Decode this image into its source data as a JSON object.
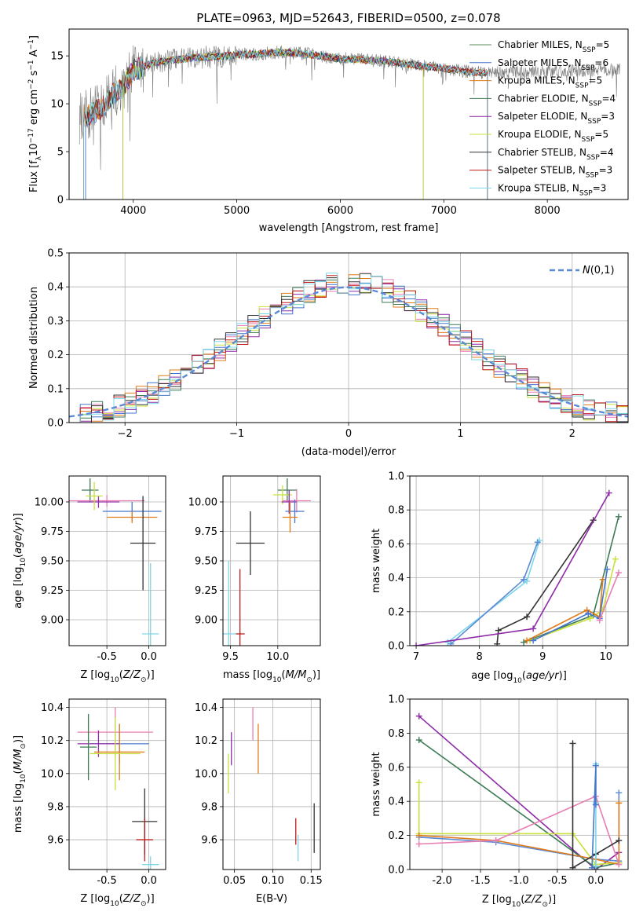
{
  "chart_data": [
    {
      "id": "spectrum",
      "type": "line",
      "title": "PLATE=0963, MJD=52643, FIBERID=0500, z=0.078",
      "xlabel": "wavelength [Angstrom, rest frame]",
      "ylabel": "Flux [f_λ 10^-17 erg cm^-2 s^-1 A^-1]",
      "xlim": [
        3380,
        8780
      ],
      "ylim": [
        0,
        17.8
      ],
      "xticks": [
        4000,
        5000,
        6000,
        7000,
        8000
      ],
      "yticks": [
        0,
        5,
        10,
        15
      ],
      "grid": false,
      "legend_position": "top-right",
      "continuum_x": [
        3500,
        3600,
        3700,
        3800,
        3900,
        4000,
        4200,
        4400,
        4600,
        4800,
        5000,
        5200,
        5400,
        5600,
        5800,
        6000,
        6200,
        6400,
        6600,
        6800,
        7000,
        7200,
        7400
      ],
      "continuum_y": [
        8.5,
        9.0,
        9.6,
        11.0,
        11.8,
        13.5,
        14.3,
        14.6,
        14.8,
        14.9,
        15.1,
        15.2,
        15.4,
        15.3,
        15.0,
        14.7,
        14.6,
        14.5,
        14.2,
        13.9,
        13.7,
        13.4,
        13.2
      ],
      "data_end_x": 8700,
      "series": [
        {
          "name": "Chabrier MILES, N_SSP=5",
          "label_prefix": "Chabrier MILES, N",
          "label_sub": "SSP",
          "label_suffix": "=5",
          "color": "#5b8a5b",
          "fit_range": [
            3540,
            7420
          ]
        },
        {
          "name": "Salpeter MILES, N_SSP=6",
          "label_prefix": "Salpeter MILES, N",
          "label_sub": "SSP",
          "label_suffix": "=6",
          "color": "#4477cc",
          "fit_range": [
            3540,
            7420
          ]
        },
        {
          "name": "Kroupa MILES, N_SSP=5",
          "label_prefix": "Kroupa MILES, N",
          "label_sub": "SSP",
          "label_suffix": "=5",
          "color": "#e07b1a",
          "fit_range": [
            3520,
            7420
          ]
        },
        {
          "name": "Chabrier ELODIE, N_SSP=4",
          "label_prefix": "Chabrier ELODIE, N",
          "label_sub": "SSP",
          "label_suffix": "=4",
          "color": "#3d7a55",
          "fit_range": [
            3900,
            6800
          ]
        },
        {
          "name": "Salpeter ELODIE, N_SSP=3",
          "label_prefix": "Salpeter ELODIE, N",
          "label_sub": "SSP",
          "label_suffix": "=3",
          "color": "#8e2aa8",
          "fit_range": [
            3900,
            6800
          ]
        },
        {
          "name": "Kroupa ELODIE, N_SSP=5",
          "label_prefix": "Kroupa ELODIE, N",
          "label_sub": "SSP",
          "label_suffix": "=5",
          "color": "#c8e03a",
          "fit_range": [
            3900,
            6800
          ]
        },
        {
          "name": "Chabrier STELIB, N_SSP=4",
          "label_prefix": "Chabrier STELIB, N",
          "label_sub": "SSP",
          "label_suffix": "=4",
          "color": "#333333",
          "fit_range": [
            3520,
            7420
          ]
        },
        {
          "name": "Salpeter STELIB, N_SSP=3",
          "label_prefix": "Salpeter STELIB, N",
          "label_sub": "SSP",
          "label_suffix": "=3",
          "color": "#c01a1a",
          "fit_range": [
            3520,
            7420
          ]
        },
        {
          "name": "Kroupa STELIB, N_SSP=3",
          "label_prefix": "Kroupa STELIB, N",
          "label_sub": "SSP",
          "label_suffix": "=3",
          "color": "#7dd7e8",
          "fit_range": [
            3520,
            7420
          ]
        }
      ]
    },
    {
      "id": "residuals",
      "type": "line",
      "xlabel": "(data-model)/error",
      "ylabel": "Normed distribution",
      "xlim": [
        -2.5,
        2.5
      ],
      "ylim": [
        0,
        0.5
      ],
      "xticks": [
        -2,
        -1,
        0,
        1,
        2
      ],
      "yticks": [
        0.0,
        0.1,
        0.2,
        0.3,
        0.4,
        0.5
      ],
      "grid": true,
      "legend_position": "top-right",
      "legend": "N(0,1)",
      "normal_mean": 0,
      "normal_sd": 1,
      "hist_bin_width": 0.1,
      "hist_colors": [
        "#e87db3",
        "#c8e03a",
        "#8e2aa8",
        "#4477cc",
        "#e07b1a",
        "#3d7a55",
        "#333333",
        "#c01a1a",
        "#7dd7e8"
      ],
      "curve_color": "#5b8ad6"
    },
    {
      "id": "z-age",
      "type": "scatter",
      "xlabel": "Z [log10(Z/Z⊙)]",
      "ylabel": "age [log10(age/yr)]",
      "xlim": [
        -0.95,
        0.2
      ],
      "ylim": [
        8.78,
        10.22
      ],
      "xticks": [
        -0.5,
        0.0
      ],
      "yticks": [
        9.0,
        9.25,
        9.5,
        9.75,
        10.0
      ],
      "grid": true,
      "points": [
        {
          "color": "#3d7a55",
          "x": -0.7,
          "xerr": 0.1,
          "y": 10.1,
          "yerr": 0.1
        },
        {
          "color": "#e87db3",
          "x": -0.5,
          "xerr": 0.45,
          "y": 10.01,
          "yerr": 0.05
        },
        {
          "color": "#8e2aa8",
          "x": -0.6,
          "xerr": 0.25,
          "y": 10.0,
          "yerr": 0.05
        },
        {
          "color": "#c8e03a",
          "x": -0.65,
          "xerr": 0.1,
          "y": 10.05,
          "yerr": 0.12
        },
        {
          "color": "#4477cc",
          "x": -0.2,
          "xerr": 0.35,
          "y": 9.92,
          "yerr": 0.08
        },
        {
          "color": "#e07b1a",
          "x": -0.2,
          "xerr": 0.3,
          "y": 9.87,
          "yerr": 0.05
        },
        {
          "color": "#333333",
          "x": -0.07,
          "xerr": 0.15,
          "y": 9.65,
          "yerr": 0.4
        },
        {
          "color": "#7dd7e8",
          "x": 0.02,
          "xerr": 0.1,
          "y": 8.88,
          "yerr": 0.6
        }
      ]
    },
    {
      "id": "mass-age",
      "type": "scatter",
      "xlabel": "mass [log10(M/M⊙)]",
      "ylabel": "",
      "xlim": [
        9.42,
        10.45
      ],
      "ylim": [
        8.78,
        10.22
      ],
      "xticks": [
        9.5,
        10.0
      ],
      "yticks": [
        9.0,
        9.25,
        9.5,
        9.75,
        10.0
      ],
      "grid": true,
      "points": [
        {
          "color": "#3d7a55",
          "x": 10.1,
          "xerr": 0.1,
          "y": 10.1,
          "yerr": 0.1
        },
        {
          "color": "#c8e03a",
          "x": 10.05,
          "xerr": 0.1,
          "y": 10.06,
          "yerr": 0.08
        },
        {
          "color": "#e87db3",
          "x": 10.2,
          "xerr": 0.15,
          "y": 10.01,
          "yerr": 0.1
        },
        {
          "color": "#8e2aa8",
          "x": 10.12,
          "xerr": 0.08,
          "y": 10.0,
          "yerr": 0.1
        },
        {
          "color": "#4477cc",
          "x": 10.18,
          "xerr": 0.1,
          "y": 9.92,
          "yerr": 0.1
        },
        {
          "color": "#e07b1a",
          "x": 10.13,
          "xerr": 0.08,
          "y": 9.87,
          "yerr": 0.13
        },
        {
          "color": "#333333",
          "x": 9.71,
          "xerr": 0.15,
          "y": 9.65,
          "yerr": 0.27
        },
        {
          "color": "#c01a1a",
          "x": 9.6,
          "xerr": 0.05,
          "y": 8.88,
          "yerr": 0.55
        },
        {
          "color": "#7dd7e8",
          "x": 9.48,
          "xerr": 0.08,
          "y": 8.88,
          "yerr": 0.62
        }
      ]
    },
    {
      "id": "age-weight",
      "type": "line",
      "xlabel": "age [log10(age/yr)]",
      "ylabel": "mass weight",
      "xlim": [
        6.9,
        10.35
      ],
      "ylim": [
        0,
        1.0
      ],
      "xticks": [
        7,
        8,
        9,
        10
      ],
      "yticks": [
        0.0,
        0.2,
        0.4,
        0.6,
        0.8,
        1.0
      ],
      "grid": true,
      "series": [
        {
          "color": "#7dd7e8",
          "x": [
            7.5,
            8.75,
            8.95
          ],
          "y": [
            0.02,
            0.38,
            0.62
          ]
        },
        {
          "color": "#5b8ad6",
          "x": [
            7.55,
            8.7,
            8.92
          ],
          "y": [
            0.01,
            0.39,
            0.61
          ]
        },
        {
          "color": "#333333",
          "x": [
            8.28,
            8.3,
            8.75,
            9.8
          ],
          "y": [
            0.01,
            0.09,
            0.17,
            0.74
          ]
        },
        {
          "color": "#8e2aa8",
          "x": [
            7.0,
            8.85,
            10.05
          ],
          "y": [
            0.0,
            0.1,
            0.9
          ]
        },
        {
          "color": "#3d7a55",
          "x": [
            8.7,
            9.8,
            10.2
          ],
          "y": [
            0.02,
            0.18,
            0.76
          ]
        },
        {
          "color": "#c8e03a",
          "x": [
            8.8,
            9.75,
            9.95,
            10.15
          ],
          "y": [
            0.03,
            0.16,
            0.21,
            0.51
          ]
        },
        {
          "color": "#e07b1a",
          "x": [
            8.75,
            9.7,
            9.9,
            9.95
          ],
          "y": [
            0.03,
            0.21,
            0.17,
            0.39
          ]
        },
        {
          "color": "#4477cc",
          "x": [
            8.85,
            9.72,
            9.9,
            10.02
          ],
          "y": [
            0.03,
            0.19,
            0.16,
            0.45
          ]
        },
        {
          "color": "#e87db3",
          "x": [
            9.9,
            10.2
          ],
          "y": [
            0.15,
            0.43
          ]
        }
      ]
    },
    {
      "id": "z-mass",
      "type": "scatter",
      "xlabel": "Z [log10(Z/Z⊙)]",
      "ylabel": "mass [log10(M/M⊙)]",
      "xlim": [
        -0.95,
        0.2
      ],
      "ylim": [
        9.42,
        10.45
      ],
      "xticks": [
        -0.5,
        0.0
      ],
      "yticks": [
        9.6,
        9.8,
        10.0,
        10.2,
        10.4
      ],
      "grid": true,
      "points": [
        {
          "color": "#e87db3",
          "x": -0.4,
          "xerr": 0.45,
          "y": 10.25,
          "yerr": 0.15
        },
        {
          "color": "#4477cc",
          "x": -0.35,
          "xerr": 0.35,
          "y": 10.18,
          "yerr": 0.12
        },
        {
          "color": "#8e2aa8",
          "x": -0.6,
          "xerr": 0.25,
          "y": 10.18,
          "yerr": 0.08
        },
        {
          "color": "#3d7a55",
          "x": -0.72,
          "xerr": 0.1,
          "y": 10.16,
          "yerr": 0.2
        },
        {
          "color": "#e07b1a",
          "x": -0.35,
          "xerr": 0.3,
          "y": 10.13,
          "yerr": 0.17
        },
        {
          "color": "#c8e03a",
          "x": -0.4,
          "xerr": 0.3,
          "y": 10.12,
          "yerr": 0.22
        },
        {
          "color": "#333333",
          "x": -0.05,
          "xerr": 0.15,
          "y": 9.71,
          "yerr": 0.2
        },
        {
          "color": "#c01a1a",
          "x": -0.05,
          "xerr": 0.1,
          "y": 9.6,
          "yerr": 0.13
        },
        {
          "color": "#7dd7e8",
          "x": 0.02,
          "xerr": 0.1,
          "y": 9.45,
          "yerr": 0.05
        }
      ]
    },
    {
      "id": "ebv-mass",
      "type": "scatter",
      "xlabel": "E(B-V)",
      "ylabel": "",
      "xlim": [
        0.035,
        0.162
      ],
      "ylim": [
        9.42,
        10.45
      ],
      "xticks": [
        0.05,
        0.1,
        0.15
      ],
      "yticks": [
        9.6,
        9.8,
        10.0,
        10.2,
        10.4
      ],
      "grid": true,
      "points": [
        {
          "color": "#c8e03a",
          "x": 0.042,
          "yerr": 0.12,
          "y": 10.0
        },
        {
          "color": "#8e2aa8",
          "x": 0.046,
          "yerr": 0.1,
          "y": 10.15
        },
        {
          "color": "#e87db3",
          "x": 0.074,
          "yerr": 0.1,
          "y": 10.3
        },
        {
          "color": "#e07b1a",
          "x": 0.081,
          "yerr": 0.15,
          "y": 10.15
        },
        {
          "color": "#c01a1a",
          "x": 0.13,
          "yerr": 0.08,
          "y": 9.65
        },
        {
          "color": "#7dd7e8",
          "x": 0.133,
          "yerr": 0.08,
          "y": 9.55
        },
        {
          "color": "#333333",
          "x": 0.154,
          "yerr": 0.15,
          "y": 9.67
        }
      ]
    },
    {
      "id": "z-weight",
      "type": "line",
      "xlabel": "Z [log10(Z/Z⊙)]",
      "ylabel": "mass weight",
      "xlim": [
        -2.42,
        0.42
      ],
      "ylim": [
        0,
        1.0
      ],
      "xticks": [
        -2.0,
        -1.5,
        -1.0,
        -0.5,
        0.0
      ],
      "yticks": [
        0.0,
        0.2,
        0.4,
        0.6,
        0.8,
        1.0
      ],
      "grid": true,
      "series": [
        {
          "color": "#8e2aa8",
          "x": [
            -2.3,
            0.0,
            0.3
          ],
          "y": [
            0.9,
            0.0,
            0.1
          ]
        },
        {
          "color": "#3d7a55",
          "x": [
            -2.3,
            0.0,
            0.3
          ],
          "y": [
            0.76,
            0.01,
            0.04
          ]
        },
        {
          "color": "#c8e03a",
          "x": [
            -2.3,
            -2.3,
            -0.3,
            0.0,
            0.3
          ],
          "y": [
            0.51,
            0.21,
            0.21,
            0.03,
            0.04
          ]
        },
        {
          "color": "#5b8ad6",
          "x": [
            -2.3,
            -1.3,
            0.0,
            0.3,
            0.3
          ],
          "y": [
            0.19,
            0.16,
            0.06,
            0.05,
            0.45
          ]
        },
        {
          "color": "#e07b1a",
          "x": [
            -2.3,
            -1.3,
            0.0,
            0.3,
            0.3
          ],
          "y": [
            0.2,
            0.17,
            0.06,
            0.03,
            0.39
          ]
        },
        {
          "color": "#e87db3",
          "x": [
            -2.3,
            -1.3,
            0.0,
            0.3
          ],
          "y": [
            0.15,
            0.17,
            0.43,
            0.03
          ]
        },
        {
          "color": "#333333",
          "x": [
            -0.3,
            -0.3,
            0.0,
            0.3
          ],
          "y": [
            0.74,
            0.01,
            0.09,
            0.17
          ]
        },
        {
          "color": "#7dd7e8",
          "x": [
            0.0,
            0.0,
            0.0
          ],
          "y": [
            0.62,
            0.02,
            0.39
          ]
        },
        {
          "color": "#4477cc",
          "x": [
            -0.05,
            0.0,
            0.0
          ],
          "y": [
            0.01,
            0.61,
            0.38
          ]
        }
      ]
    }
  ]
}
